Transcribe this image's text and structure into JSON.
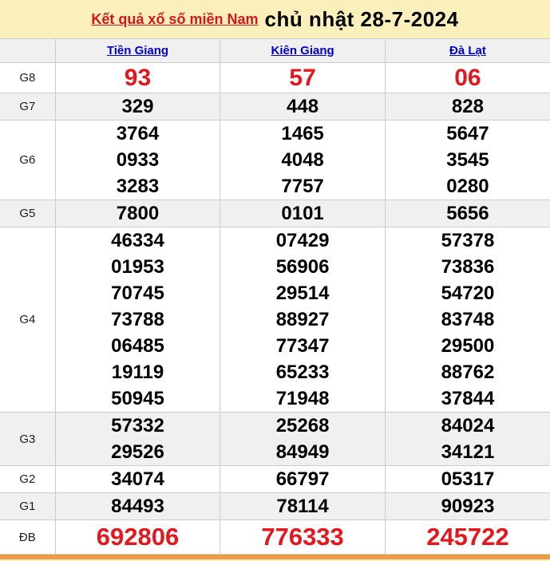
{
  "title": {
    "link_label": "Kết quả xổ số miền Nam",
    "date_label": "chủ nhật 28-7-2024"
  },
  "table": {
    "corner_label": "",
    "columns": [
      "Tiền Giang",
      "Kiên Giang",
      "Đà Lạt"
    ],
    "rows": [
      {
        "label": "G8",
        "style": "g8",
        "values": [
          [
            "93"
          ],
          [
            "57"
          ],
          [
            "06"
          ]
        ]
      },
      {
        "label": "G7",
        "style": "",
        "values": [
          [
            "329"
          ],
          [
            "448"
          ],
          [
            "828"
          ]
        ]
      },
      {
        "label": "G6",
        "style": "",
        "values": [
          [
            "3764",
            "0933",
            "3283"
          ],
          [
            "1465",
            "4048",
            "7757"
          ],
          [
            "5647",
            "3545",
            "0280"
          ]
        ]
      },
      {
        "label": "G5",
        "style": "",
        "values": [
          [
            "7800"
          ],
          [
            "0101"
          ],
          [
            "5656"
          ]
        ]
      },
      {
        "label": "G4",
        "style": "",
        "values": [
          [
            "46334",
            "01953",
            "70745",
            "73788",
            "06485",
            "19119",
            "50945"
          ],
          [
            "07429",
            "56906",
            "29514",
            "88927",
            "77347",
            "65233",
            "71948"
          ],
          [
            "57378",
            "73836",
            "54720",
            "83748",
            "29500",
            "88762",
            "37844"
          ]
        ]
      },
      {
        "label": "G3",
        "style": "",
        "values": [
          [
            "57332",
            "29526"
          ],
          [
            "25268",
            "84949"
          ],
          [
            "84024",
            "34121"
          ]
        ]
      },
      {
        "label": "G2",
        "style": "",
        "values": [
          [
            "34074"
          ],
          [
            "66797"
          ],
          [
            "05317"
          ]
        ]
      },
      {
        "label": "G1",
        "style": "",
        "values": [
          [
            "84493"
          ],
          [
            "78114"
          ],
          [
            "90923"
          ]
        ]
      },
      {
        "label": "ĐB",
        "style": "db",
        "values": [
          [
            "692806"
          ],
          [
            "776333"
          ],
          [
            "245722"
          ]
        ]
      }
    ]
  },
  "colors": {
    "page_background": "#fbf0bb",
    "row_shade": "#f0f0f0",
    "row_plain": "#ffffff",
    "prize_red": "#e3171d",
    "link_blue": "#0000cc",
    "title_link_red": "#d6161c",
    "bottom_bar_orange": "#ec9b3f",
    "border_gray": "#cccccc"
  }
}
